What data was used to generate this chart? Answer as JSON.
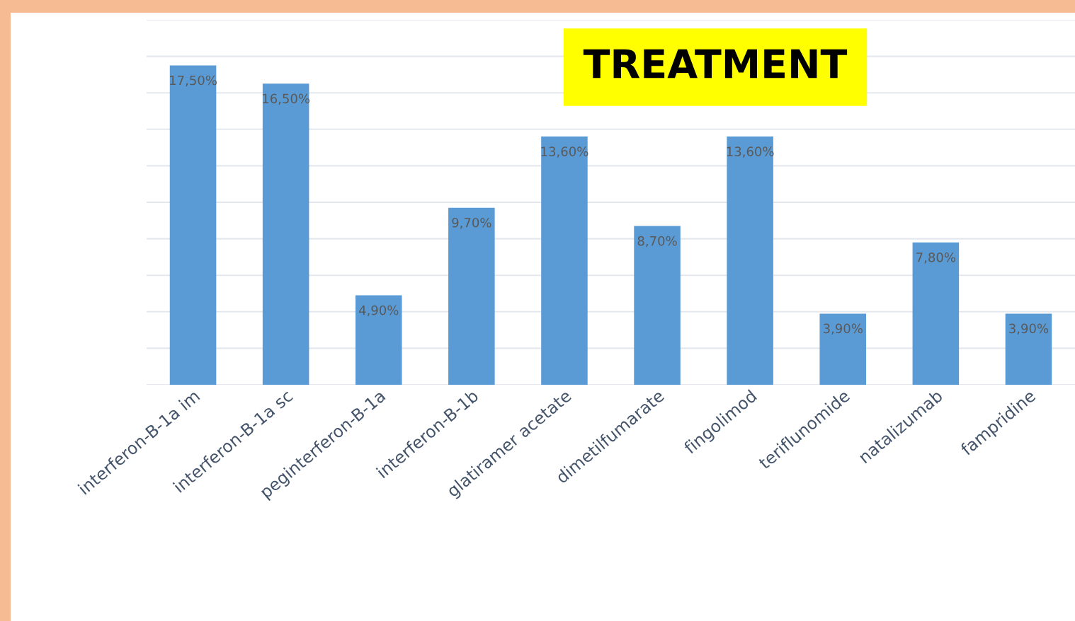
{
  "chart_data": {
    "type": "bar",
    "title": "TREATMENT",
    "categories": [
      "interferon-B-1a im",
      "interferon-B-1a sc",
      "peginterferon-B-1a",
      "interferon-B-1b",
      "glatiramer acetate",
      "dimetilfumarate",
      "fingolimod",
      "teriflunomide",
      "natalizumab",
      "fampridine"
    ],
    "values": [
      17.5,
      16.5,
      4.9,
      9.7,
      13.6,
      8.7,
      13.6,
      3.9,
      7.8,
      3.9
    ],
    "value_labels": [
      "17,50%",
      "16,50%",
      "4,90%",
      "9,70%",
      "13,60%",
      "8,70%",
      "13,60%",
      "3,90%",
      "7,80%",
      "3,90%"
    ],
    "color": "#5b9bd5",
    "ylim": [
      0,
      20
    ],
    "yticks": [
      {
        "value": 0,
        "label": null
      },
      {
        "value": 2,
        "label": null
      },
      {
        "value": 4,
        "label": null
      },
      {
        "value": 6,
        "label": null
      },
      {
        "value": 8,
        "label": null
      },
      {
        "value": 10,
        "label": null
      },
      {
        "value": 12,
        "label": null
      },
      {
        "value": 14,
        "label": null
      },
      {
        "value": 16,
        "label": null
      },
      {
        "value": 18,
        "label": null
      },
      {
        "value": 20,
        "label": null
      }
    ],
    "tick_labels": "x",
    "grid": "y"
  }
}
